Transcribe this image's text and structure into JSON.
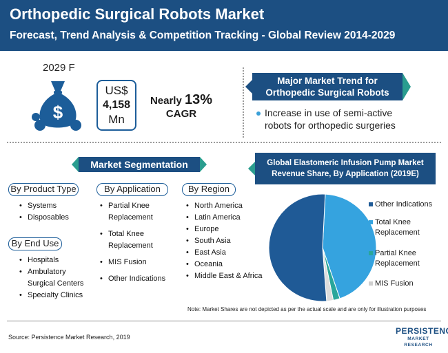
{
  "header": {
    "title": "Orthopedic Surgical Robots Market",
    "subtitle": "Forecast, Trend Analysis & Competition Tracking - Global Review 2014-2029"
  },
  "forecast": {
    "year_label": "2029 F",
    "currency": "US$",
    "amount": "4,158",
    "unit": "Mn",
    "cagr_prefix": "Nearly",
    "cagr_value": "13%",
    "cagr_label": "CAGR",
    "icon": "money-bag-icon"
  },
  "trend": {
    "banner_line1": "Major Market Trend for",
    "banner_line2": "Orthopedic Surgical Robots",
    "bullet_line1": "Increase in use of semi-active",
    "bullet_line2": "robots for orthopedic surgeries"
  },
  "segmentation": {
    "banner": "Market Segmentation",
    "product_type": {
      "heading": "By Product Type",
      "items": [
        "Systems",
        "Disposables"
      ]
    },
    "end_use": {
      "heading": "By End Use",
      "items": [
        "Hospitals",
        "Ambulatory Surgical Centers",
        "Specialty Clinics"
      ],
      "item2_line1": "Ambulatory",
      "item2_line2": "Surgical Centers"
    },
    "application": {
      "heading": "By Application",
      "items": [
        "Partial Knee Replacement",
        "Total Knee Replacement",
        "MIS Fusion",
        "Other Indications"
      ],
      "item1_line1": "Partial Knee",
      "item1_line2": "Replacement",
      "item2_line1": "Total Knee",
      "item2_line2": "Replacement"
    },
    "region": {
      "heading": "By Region",
      "items": [
        "North America",
        "Latin America",
        "Europe",
        "South Asia",
        "East Asia",
        "Oceania",
        "Middle East & Africa"
      ]
    }
  },
  "chart_data": {
    "type": "pie",
    "title": "Global Elastomeric Infusion Pump Market Revenue Share, By Application (2019E)",
    "title_line1": "Global Elastomeric Infusion Pump Market",
    "title_line2": "Revenue Share, By Application (2019E)",
    "categories": [
      "Other Indications",
      "Total Knee Replacement",
      "Partial Knee Replacement",
      "MIS Fusion"
    ],
    "legend_lines": [
      [
        "Other Indications"
      ],
      [
        "Total Knee",
        "Replacement"
      ],
      [
        "Partial Knee",
        "Replacement"
      ],
      [
        "MIS Fusion"
      ]
    ],
    "values": [
      52,
      44,
      2,
      2
    ],
    "colors": [
      "#1f5a96",
      "#35a3df",
      "#29a69a",
      "#dcdcdc"
    ],
    "legend_position": "right",
    "note": "Note: Market Shares are not depicted as per the actual scale and are only for illustration purposes"
  },
  "footer": {
    "source": "Source: Persistence Market Research, 2019",
    "logo_main": "PERSISTENCE",
    "logo_sub": "MARKET RESEARCH"
  },
  "colors": {
    "header_bg": "#1c4f82",
    "accent_teal": "#2a9d8f",
    "bullet_blue": "#3aa0d8"
  }
}
